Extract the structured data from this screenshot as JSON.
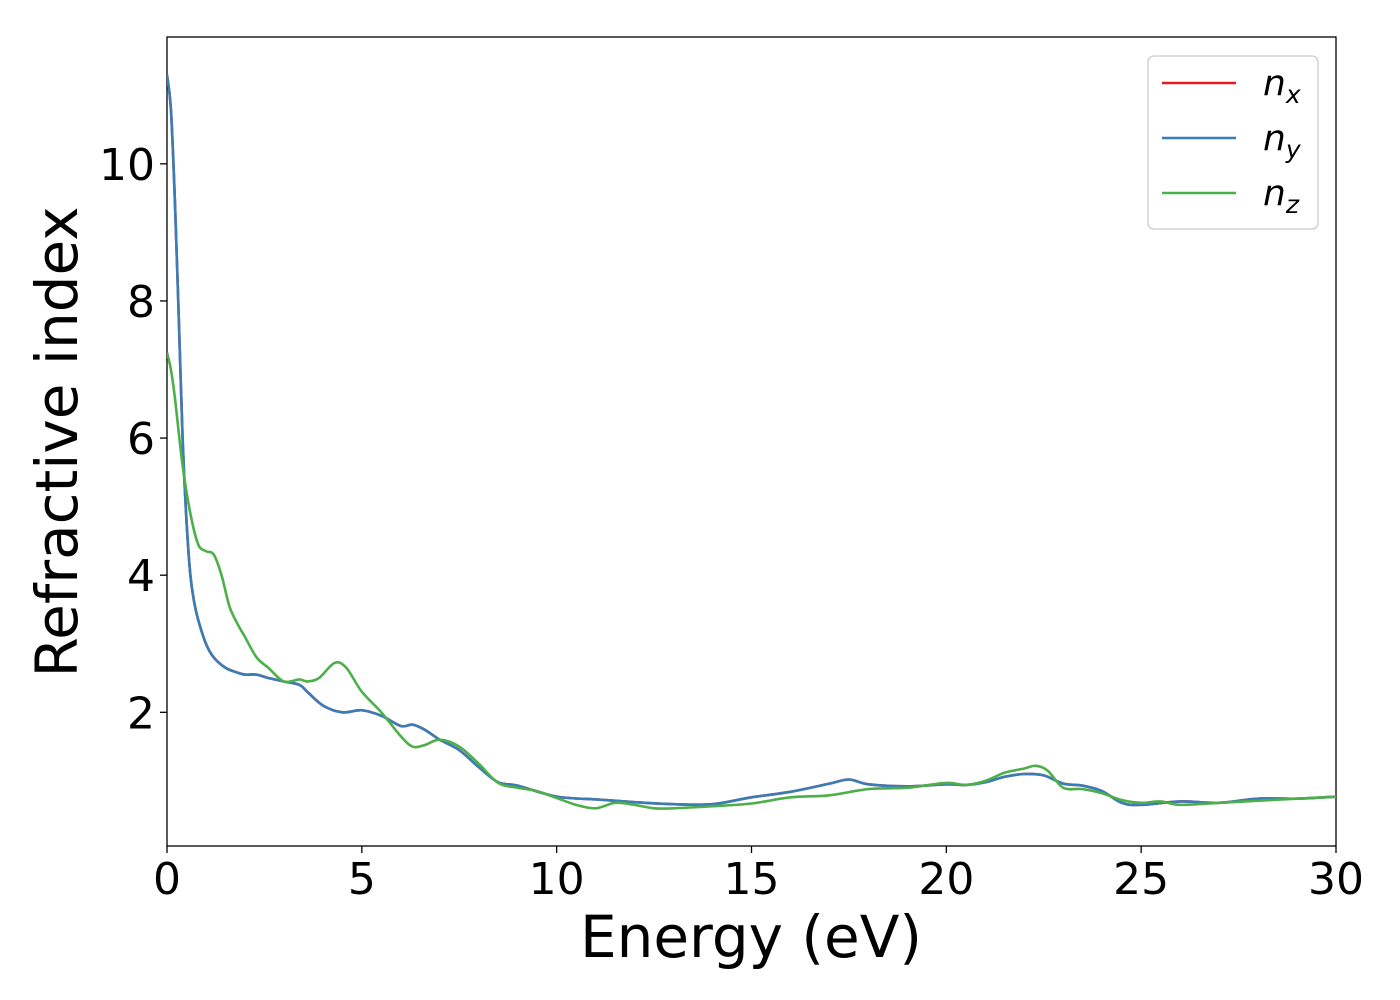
{
  "chart_data": {
    "type": "line",
    "title": "",
    "xlabel": "Energy (eV)",
    "ylabel": "Refractive index",
    "xlim": [
      0,
      30
    ],
    "ylim": [
      0.05,
      11.85
    ],
    "xticks": [
      0,
      5,
      10,
      15,
      20,
      25,
      30
    ],
    "yticks": [
      2,
      4,
      6,
      8,
      10
    ],
    "grid": false,
    "legend_position": "top-right",
    "series": [
      {
        "name": "n",
        "subscript": "x",
        "color": "#e41a1c",
        "x": [
          0,
          0.1,
          0.2,
          0.3,
          0.4,
          0.5,
          0.6,
          0.7,
          0.8,
          1.0,
          1.2,
          1.5,
          1.8,
          2.0,
          2.3,
          2.6,
          3.0,
          3.4,
          3.6,
          4.0,
          4.5,
          5.0,
          5.5,
          6.0,
          6.3,
          6.6,
          7.0,
          7.5,
          8.0,
          8.5,
          9.0,
          10.0,
          11.0,
          12.0,
          13.0,
          14.0,
          15.0,
          16.0,
          17.0,
          17.5,
          18.0,
          19.0,
          20.0,
          20.5,
          21.0,
          21.5,
          22.0,
          22.5,
          23.0,
          23.5,
          24.0,
          24.5,
          25.0,
          26.0,
          27.0,
          28.0,
          29.0,
          30.0
        ],
        "y": [
          11.3,
          10.8,
          9.5,
          7.8,
          6.0,
          4.8,
          4.0,
          3.6,
          3.35,
          3.0,
          2.8,
          2.65,
          2.58,
          2.55,
          2.55,
          2.5,
          2.45,
          2.4,
          2.3,
          2.1,
          2.0,
          2.03,
          1.95,
          1.8,
          1.82,
          1.75,
          1.6,
          1.45,
          1.2,
          0.98,
          0.93,
          0.77,
          0.73,
          0.69,
          0.66,
          0.66,
          0.76,
          0.84,
          0.96,
          1.02,
          0.95,
          0.92,
          0.95,
          0.94,
          0.98,
          1.06,
          1.1,
          1.08,
          0.96,
          0.93,
          0.85,
          0.68,
          0.65,
          0.7,
          0.68,
          0.74,
          0.74,
          0.77
        ]
      },
      {
        "name": "n",
        "subscript": "y",
        "color": "#377eb8",
        "x": [
          0,
          0.1,
          0.2,
          0.3,
          0.4,
          0.5,
          0.6,
          0.7,
          0.8,
          1.0,
          1.2,
          1.5,
          1.8,
          2.0,
          2.3,
          2.6,
          3.0,
          3.4,
          3.6,
          4.0,
          4.5,
          5.0,
          5.5,
          6.0,
          6.3,
          6.6,
          7.0,
          7.5,
          8.0,
          8.5,
          9.0,
          10.0,
          11.0,
          12.0,
          13.0,
          14.0,
          15.0,
          16.0,
          17.0,
          17.5,
          18.0,
          19.0,
          20.0,
          20.5,
          21.0,
          21.5,
          22.0,
          22.5,
          23.0,
          23.5,
          24.0,
          24.5,
          25.0,
          26.0,
          27.0,
          28.0,
          29.0,
          30.0
        ],
        "y": [
          11.3,
          10.8,
          9.5,
          7.8,
          6.0,
          4.8,
          4.0,
          3.6,
          3.35,
          3.0,
          2.8,
          2.65,
          2.58,
          2.55,
          2.55,
          2.5,
          2.45,
          2.4,
          2.3,
          2.1,
          2.0,
          2.03,
          1.95,
          1.8,
          1.82,
          1.75,
          1.6,
          1.45,
          1.2,
          0.98,
          0.93,
          0.77,
          0.73,
          0.69,
          0.66,
          0.66,
          0.76,
          0.84,
          0.96,
          1.02,
          0.95,
          0.92,
          0.95,
          0.94,
          0.98,
          1.06,
          1.1,
          1.08,
          0.96,
          0.93,
          0.85,
          0.68,
          0.65,
          0.7,
          0.68,
          0.74,
          0.74,
          0.77
        ]
      },
      {
        "name": "n",
        "subscript": "z",
        "color": "#4daf4a",
        "x": [
          0,
          0.1,
          0.2,
          0.4,
          0.6,
          0.8,
          1.0,
          1.2,
          1.4,
          1.6,
          1.8,
          2.0,
          2.3,
          2.6,
          3.0,
          3.4,
          3.6,
          3.9,
          4.3,
          4.6,
          5.0,
          5.5,
          6.0,
          6.3,
          6.6,
          7.0,
          7.5,
          8.0,
          8.5,
          9.0,
          9.5,
          10.0,
          10.5,
          11.0,
          11.5,
          12.0,
          12.5,
          13.0,
          14.0,
          15.0,
          16.0,
          17.0,
          18.0,
          19.0,
          20.0,
          20.5,
          21.0,
          21.5,
          22.0,
          22.3,
          22.6,
          23.0,
          23.5,
          24.0,
          24.5,
          25.0,
          25.5,
          26.0,
          27.0,
          28.0,
          29.0,
          30.0
        ],
        "y": [
          7.25,
          7.0,
          6.6,
          5.6,
          4.9,
          4.45,
          4.35,
          4.3,
          4.0,
          3.55,
          3.3,
          3.1,
          2.8,
          2.65,
          2.45,
          2.48,
          2.45,
          2.5,
          2.72,
          2.65,
          2.3,
          2.0,
          1.65,
          1.5,
          1.52,
          1.6,
          1.5,
          1.25,
          0.97,
          0.9,
          0.85,
          0.75,
          0.65,
          0.6,
          0.68,
          0.65,
          0.6,
          0.6,
          0.63,
          0.67,
          0.76,
          0.79,
          0.88,
          0.9,
          0.97,
          0.94,
          1.0,
          1.12,
          1.18,
          1.22,
          1.15,
          0.9,
          0.88,
          0.82,
          0.72,
          0.68,
          0.7,
          0.65,
          0.68,
          0.71,
          0.74,
          0.77
        ]
      }
    ]
  }
}
